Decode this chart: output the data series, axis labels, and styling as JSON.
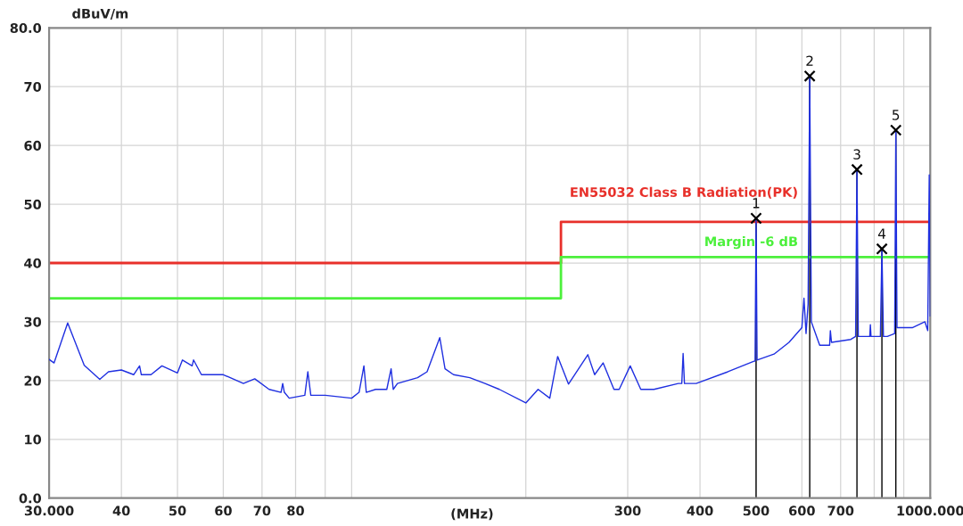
{
  "chart_data": {
    "type": "line",
    "xlabel": "(MHz)",
    "ylabel": "dBuV/m",
    "log": "x",
    "grid": true,
    "legend": false,
    "xlim": [
      30,
      1000
    ],
    "xticks": [
      {
        "value": 30,
        "label": "30.000"
      },
      40,
      50,
      60,
      70,
      80,
      {
        "value": 90,
        "label": null
      },
      {
        "value": 100,
        "label": null
      },
      {
        "value": 200,
        "label": null
      },
      300,
      400,
      500,
      600,
      700,
      {
        "value": 800,
        "label": null
      },
      {
        "value": 900,
        "label": null
      },
      {
        "value": 1000,
        "label": "1000.000"
      }
    ],
    "ylim": [
      0,
      80
    ],
    "yticks": [
      {
        "value": 0,
        "label": "0.0"
      },
      10,
      20,
      30,
      40,
      50,
      60,
      70,
      {
        "value": 80,
        "label": "80.0"
      }
    ],
    "series": [
      {
        "color": "#1f2fe0",
        "x": [
          30,
          30.6,
          32.3,
          34.5,
          36.7,
          38,
          40,
          42,
          43,
          43.3,
          45,
          47,
          50,
          51,
          53,
          53.3,
          55,
          60,
          65,
          68,
          72,
          75.5,
          76,
          76.5,
          78,
          83,
          84,
          85,
          90,
          100,
          103,
          105,
          106,
          110,
          115,
          117,
          118,
          120,
          130,
          135,
          142,
          145,
          150,
          160,
          170,
          180,
          200,
          210,
          220,
          227,
          237,
          256,
          263,
          272,
          284,
          290,
          303,
          316,
          333,
          367,
          372,
          374,
          376,
          394,
          447,
          496,
          498,
          500,
          502,
          537,
          570,
          600,
          605,
          610,
          615,
          619,
          623,
          644,
          670,
          672,
          675,
          729,
          743,
          747,
          751,
          766,
          786,
          788,
          790,
          813,
          820,
          825,
          830,
          843,
          868,
          872,
          876,
          886,
          931,
          979,
          990,
          996,
          1000
        ],
        "values": [
          23.6,
          23,
          29.8,
          22.6,
          20.2,
          21.5,
          21.8,
          21,
          22.5,
          21,
          21,
          22.5,
          21.3,
          23.5,
          22.5,
          23.5,
          21,
          21,
          19.5,
          20.3,
          18.5,
          18,
          19.5,
          18,
          17,
          17.5,
          21.5,
          17.5,
          17.5,
          17,
          18,
          22.5,
          18,
          18.5,
          18.5,
          22,
          18.5,
          19.5,
          20.5,
          21.5,
          27.3,
          22,
          21,
          20.5,
          19.5,
          18.5,
          16.2,
          18.5,
          17,
          24.1,
          19.4,
          24.4,
          21,
          23,
          18.5,
          18.5,
          22.5,
          18.5,
          18.5,
          19.5,
          19.5,
          24.6,
          19.5,
          19.5,
          21.5,
          23.3,
          23.3,
          47.6,
          23.5,
          24.5,
          26.5,
          29,
          34,
          28,
          33,
          71.8,
          30,
          26,
          26,
          28.5,
          26.5,
          27,
          27.5,
          55.9,
          27.5,
          27.5,
          27.5,
          29.5,
          27.5,
          27.5,
          27.5,
          42.4,
          27.5,
          27.5,
          28,
          62.6,
          29,
          29,
          29,
          30,
          28.5,
          55,
          31
        ]
      },
      {
        "type": "step",
        "name": "EN55032 Class B Radiation(PK)",
        "color": "#e8302a",
        "x": [
          30,
          230,
          1000
        ],
        "values": [
          40,
          47,
          47
        ]
      },
      {
        "type": "step",
        "name": "Margin -6 dB",
        "color": "#4cf03c",
        "x": [
          30,
          230,
          1000
        ],
        "values": [
          34,
          41,
          41
        ]
      },
      {
        "type": "lollipop",
        "color": "#000000",
        "marker": "cross",
        "x": [
          500,
          619,
          747,
          825,
          872
        ],
        "values": [
          47.6,
          71.8,
          55.9,
          42.4,
          62.6
        ]
      }
    ],
    "annotations": [
      {
        "text": "1",
        "x": 500,
        "y": 47.6
      },
      {
        "text": "2",
        "x": 619,
        "y": 71.8
      },
      {
        "text": "3",
        "x": 747,
        "y": 55.9
      },
      {
        "text": "4",
        "x": 825,
        "y": 42.4
      },
      {
        "text": "5",
        "x": 872,
        "y": 62.6
      }
    ]
  }
}
